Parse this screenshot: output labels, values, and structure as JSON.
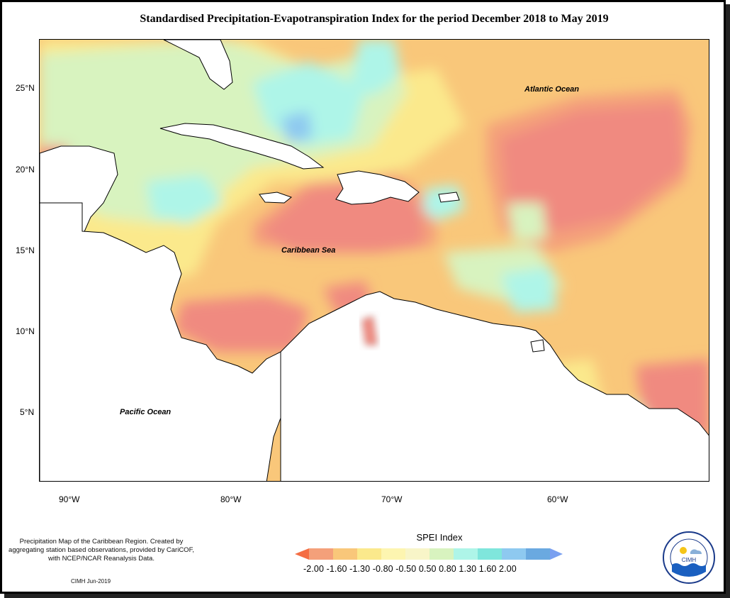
{
  "title": "Standardised Precipitation-Evapotranspiration Index for the period December 2018 to May 2019",
  "axes": {
    "lat_labels": [
      "25°N",
      "20°N",
      "15°N",
      "10°N",
      "5°N"
    ],
    "lon_labels": [
      "90°W",
      "80°W",
      "70°W",
      "60°W"
    ]
  },
  "map_labels": {
    "atlantic": "Atlantic Ocean",
    "caribbean": "Caribbean Sea",
    "pacific": "Pacific Ocean"
  },
  "note": "Precipitation Map of the Caribbean Region. Created by aggregating station based observations, provided by CariCOF, with NCEP/NCAR Reanalysis Data.",
  "credit": "CIMH Jun-2019",
  "legend": {
    "title": "SPEI Index",
    "labels_text": "-2.00 -1.60 -1.30 -0.80 -0.50  0.50  0.80  1.30  1.60  2.00",
    "colors": [
      "#f46d43",
      "#f4a07a",
      "#f9c77a",
      "#fbe98c",
      "#f8f5c8",
      "#d8f3bf",
      "#aef5e8",
      "#7fe6dc",
      "#8ec9f0",
      "#6aa9e0",
      "#7aa0f0"
    ]
  },
  "logo": {
    "text": "CIMH",
    "ring_text": "Caribbean Institute for Meteorology and Hydrology"
  }
}
